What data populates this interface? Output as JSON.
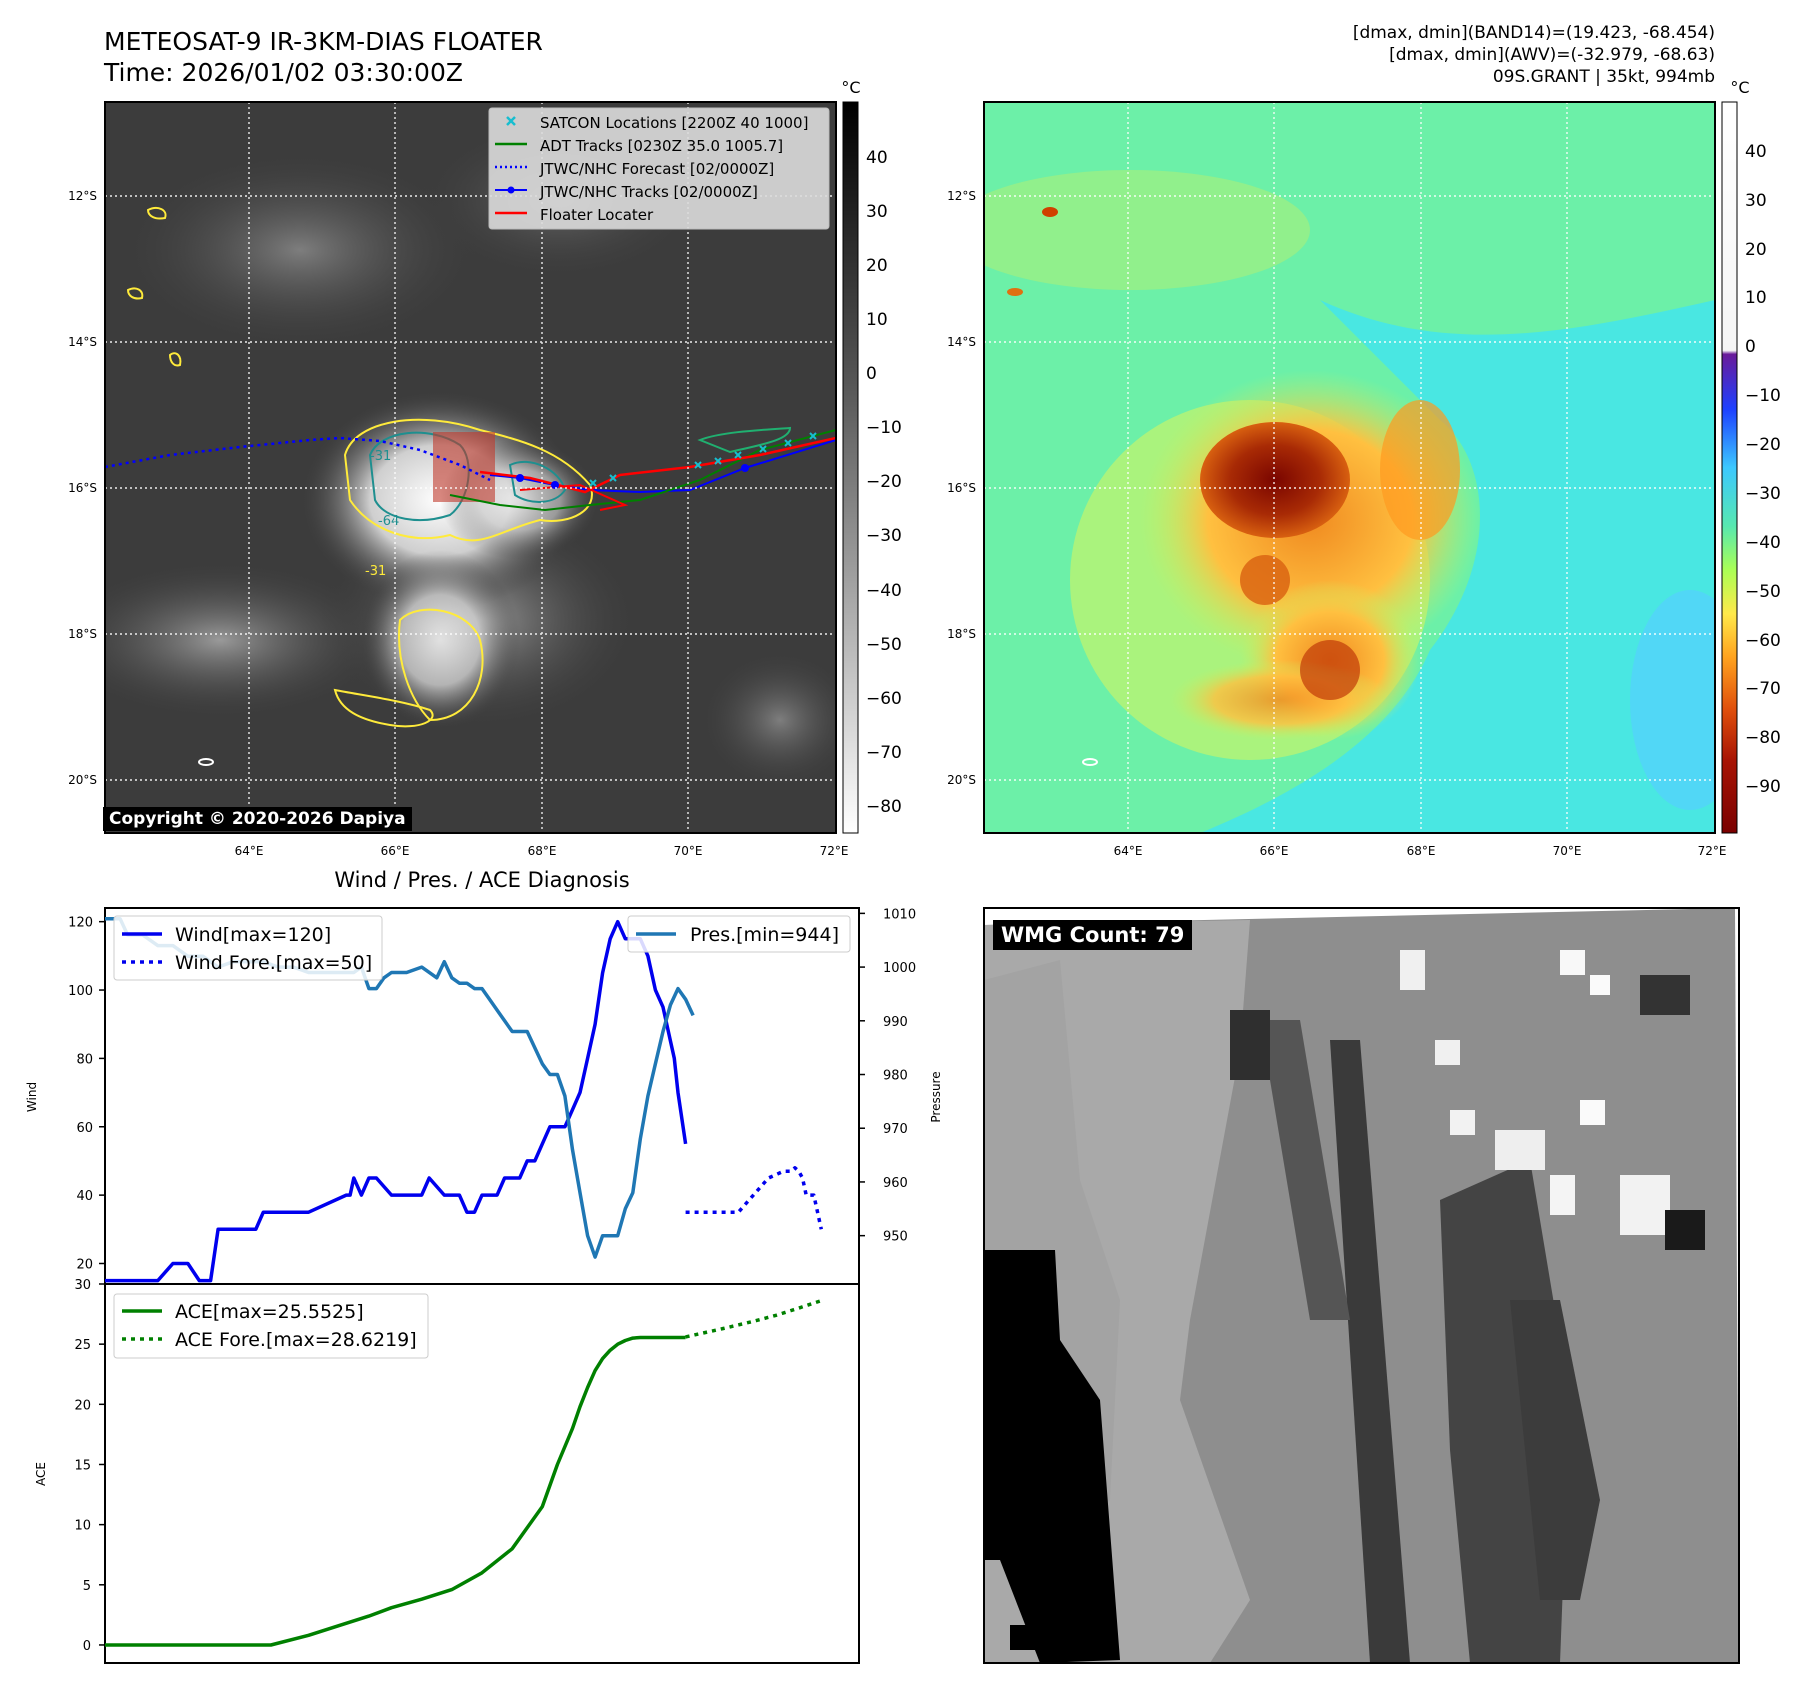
{
  "header": {
    "title_line1": "METEOSAT-9 IR-3KM-DIAS FLOATER",
    "title_line2": "Time: 2026/01/02 03:30:00Z",
    "stats_line1": "[dmax, dmin](BAND14)=(19.423, -68.454)",
    "stats_line2": "[dmax, dmin](AWV)=(-32.979, -68.63)",
    "stats_line3": "09S.GRANT | 35kt, 994mb"
  },
  "maps": {
    "lat_labels": [
      "12°S",
      "14°S",
      "16°S",
      "18°S",
      "20°S"
    ],
    "lon_labels": [
      "64°E",
      "66°E",
      "68°E",
      "70°E",
      "72°E"
    ],
    "copyright": "Copyright © 2020-2026 Dapiya",
    "contour_labels": [
      "-31",
      "-64",
      "-31"
    ],
    "legend": [
      {
        "label": "SATCON Locations [2200Z 40 1000]",
        "color": "#17becf",
        "style": "x"
      },
      {
        "label": "ADT Tracks [0230Z 35.0 1005.7]",
        "color": "#008000",
        "style": "line"
      },
      {
        "label": "JTWC/NHC Forecast [02/0000Z]",
        "color": "#0000ff",
        "style": "dotted"
      },
      {
        "label": "JTWC/NHC Tracks [02/0000Z]",
        "color": "#0000ff",
        "style": "line-dot"
      },
      {
        "label": "Floater Locater",
        "color": "#ff0000",
        "style": "line"
      }
    ],
    "left_colorbar": {
      "unit": "°C",
      "ticks": [
        "40",
        "30",
        "20",
        "10",
        "0",
        "−10",
        "−20",
        "−30",
        "−40",
        "−50",
        "−60",
        "−70",
        "−80"
      ]
    },
    "right_colorbar": {
      "unit": "°C",
      "ticks": [
        "40",
        "30",
        "20",
        "10",
        "0",
        "−10",
        "−20",
        "−30",
        "−40",
        "−50",
        "−60",
        "−70",
        "−80",
        "−90"
      ]
    }
  },
  "diagnosis": {
    "title": "Wind / Pres. / ACE Diagnosis",
    "wind_ylabel": "Wind",
    "pres_ylabel": "Pressure",
    "ace_ylabel": "ACE",
    "wmg_label": "WMG Count: 79"
  },
  "chart_data": [
    {
      "type": "line",
      "title": "Wind / Pres. / ACE Diagnosis",
      "ylabel": "Wind",
      "ylim": [
        14,
        124
      ],
      "yticks": [
        "20",
        "40",
        "60",
        "80",
        "100",
        "120"
      ],
      "y2label": "Pressure",
      "y2lim": [
        941,
        1011
      ],
      "y2ticks": [
        "950",
        "960",
        "970",
        "980",
        "990",
        "1000",
        "1010"
      ],
      "xlim": [
        0,
        100
      ],
      "series": [
        {
          "name": "Wind[max=120]",
          "color": "#0000ee",
          "style": "solid",
          "x": [
            0,
            6,
            7,
            9,
            11,
            12.5,
            14,
            15,
            16,
            20,
            21,
            26,
            27,
            32,
            32.5,
            33,
            34,
            35,
            36,
            38,
            39,
            42,
            43,
            45,
            47,
            48,
            49,
            50,
            51,
            52,
            53,
            55,
            56,
            57,
            58,
            59,
            59.5,
            60,
            61,
            62,
            63,
            64,
            65,
            66,
            67,
            68,
            69,
            70,
            70.5,
            71,
            72,
            73,
            74,
            75,
            75.5,
            76,
            77
          ],
          "values": [
            15,
            15,
            15,
            20,
            20,
            15,
            15,
            30,
            30,
            30,
            35,
            35,
            35,
            40,
            40,
            45,
            40,
            45,
            45,
            40,
            40,
            40,
            45,
            40,
            40,
            35,
            35,
            40,
            40,
            40,
            45,
            45,
            50,
            50,
            55,
            60,
            60,
            60,
            60,
            65,
            70,
            80,
            90,
            105,
            115,
            120,
            115,
            115,
            115,
            115,
            110,
            100,
            95,
            85,
            80,
            70,
            55
          ]
        },
        {
          "name": "Wind Fore.[max=50]",
          "color": "#0000ee",
          "style": "dotted",
          "x": [
            77,
            82,
            84,
            86,
            88,
            90,
            91,
            91.5,
            92,
            92.5,
            93,
            94,
            95
          ],
          "values": [
            35,
            35,
            35,
            40,
            45,
            47,
            47,
            48,
            47,
            45,
            40,
            40,
            30
          ]
        },
        {
          "name": "Pres.[min=944]",
          "color": "#1f77b4",
          "style": "solid",
          "axis": "right",
          "x": [
            0,
            2,
            3,
            5,
            7,
            9,
            11,
            13,
            15,
            17,
            19,
            21,
            23,
            25,
            27,
            29,
            31,
            33,
            34,
            35,
            36,
            37,
            38,
            39,
            40,
            42,
            44,
            45,
            46,
            47,
            48,
            49,
            50,
            51,
            52,
            53,
            54,
            55,
            56,
            57,
            58,
            59,
            60,
            61,
            62,
            63,
            64,
            65,
            66,
            67,
            68,
            69,
            70,
            71,
            72,
            73,
            74,
            75,
            76,
            77,
            78
          ],
          "values": [
            1009,
            1009,
            1006,
            1006,
            1004,
            1004,
            1002,
            1002,
            1000,
            1001,
            1001,
            1001,
            1000,
            1000,
            999,
            999,
            999,
            999,
            1000,
            996,
            996,
            998,
            999,
            999,
            999,
            1000,
            998,
            1001,
            998,
            997,
            997,
            996,
            996,
            994,
            992,
            990,
            988,
            988,
            988,
            985,
            982,
            980,
            980,
            976,
            966,
            958,
            950,
            946,
            950,
            950,
            950,
            955,
            958,
            968,
            976,
            982,
            988,
            993,
            996,
            994,
            991
          ]
        }
      ],
      "legend_left": [
        "Wind[max=120]",
        "Wind Fore.[max=50]"
      ],
      "legend_right": [
        "Pres.[min=944]"
      ]
    },
    {
      "type": "line",
      "ylabel": "ACE",
      "ylim": [
        -1.5,
        30
      ],
      "yticks": [
        "0",
        "5",
        "10",
        "15",
        "20",
        "25",
        "30"
      ],
      "xlim": [
        0,
        100
      ],
      "series": [
        {
          "name": "ACE[max=25.5525]",
          "color": "#008000",
          "style": "solid",
          "x": [
            0,
            22,
            27,
            31,
            35,
            38,
            42,
            46,
            50,
            54,
            58,
            60,
            62,
            63,
            64,
            65,
            66,
            67,
            68,
            69,
            70,
            71,
            72,
            73,
            74,
            75,
            76,
            77
          ],
          "values": [
            0,
            0,
            0.8,
            1.6,
            2.4,
            3.1,
            3.8,
            4.6,
            6,
            8,
            11.5,
            15,
            18,
            19.8,
            21.4,
            22.8,
            23.8,
            24.5,
            25,
            25.3,
            25.5,
            25.55,
            25.55,
            25.55,
            25.55,
            25.55,
            25.55,
            25.55
          ]
        },
        {
          "name": "ACE Fore.[max=28.6219]",
          "color": "#008000",
          "style": "dotted",
          "x": [
            77,
            82,
            86,
            89,
            92,
            95
          ],
          "values": [
            25.6,
            26.3,
            26.9,
            27.4,
            28.0,
            28.62
          ]
        }
      ]
    }
  ]
}
